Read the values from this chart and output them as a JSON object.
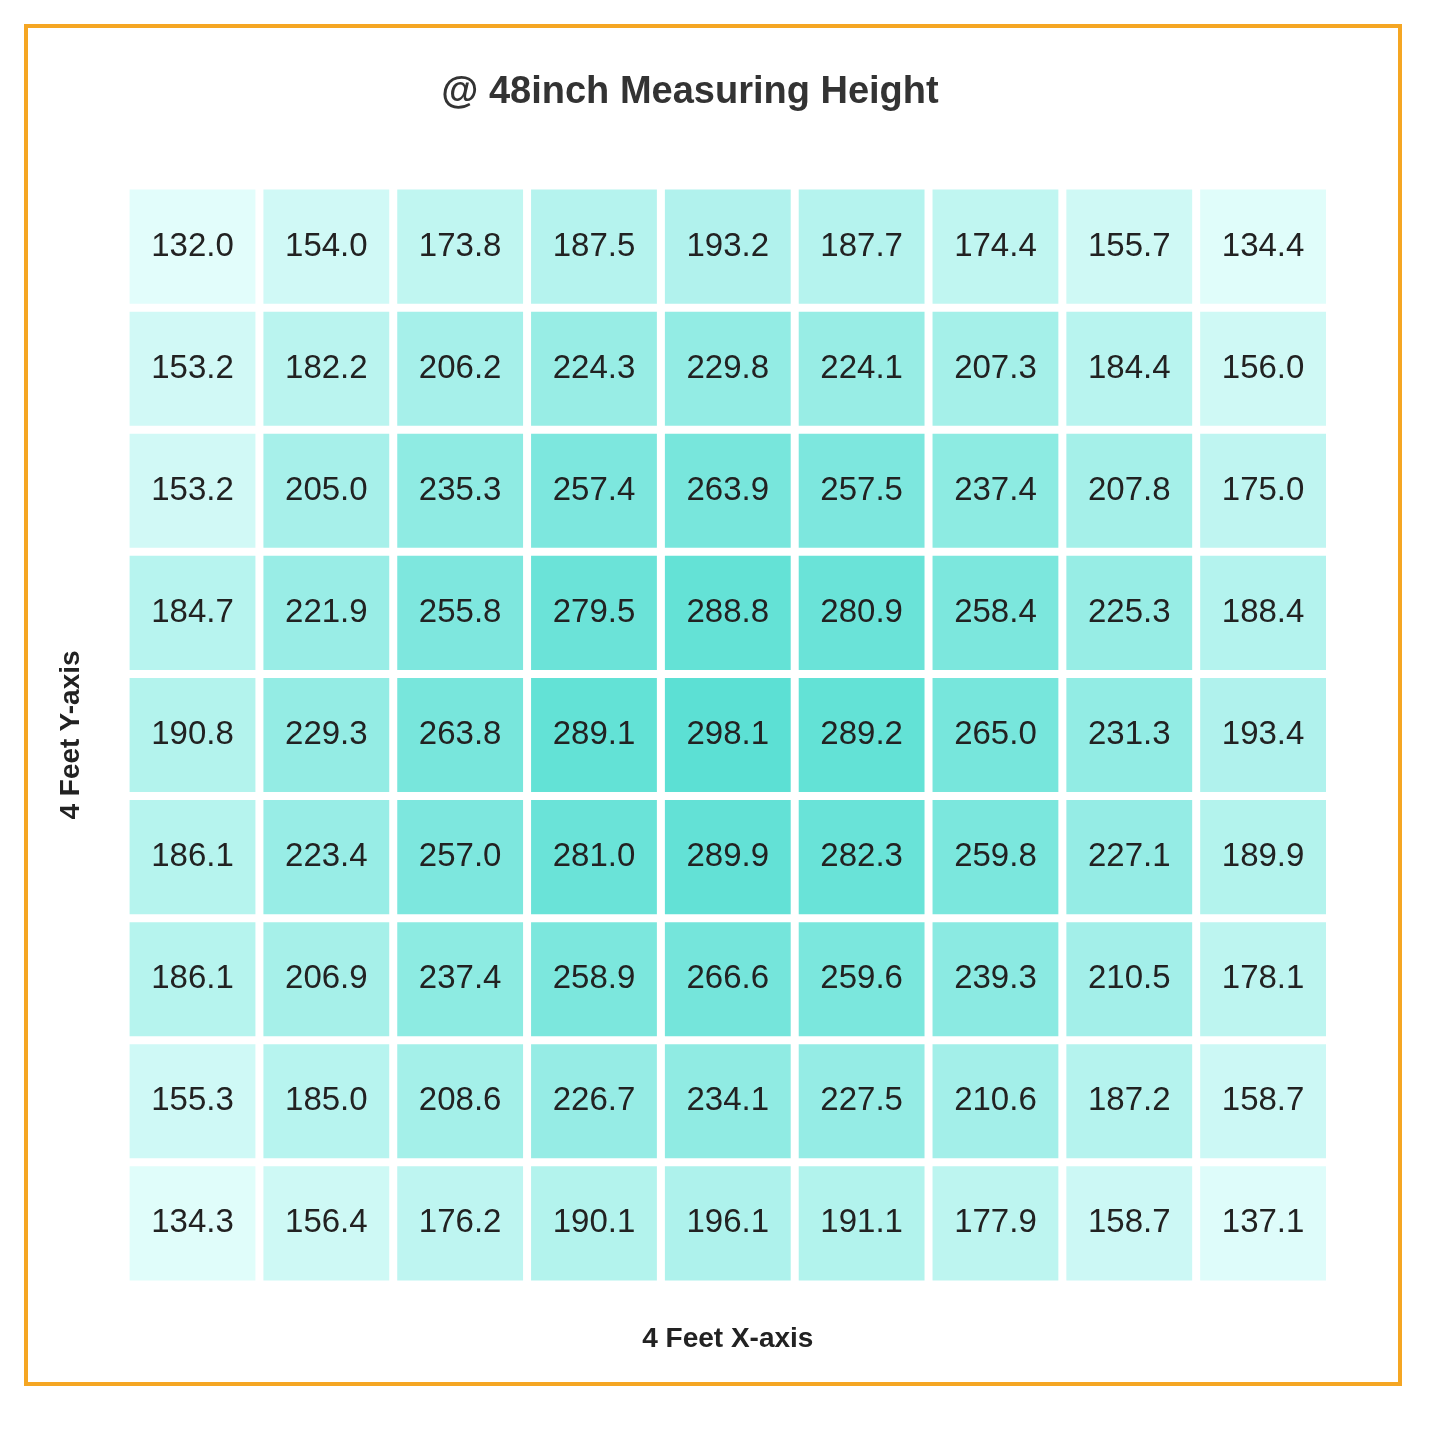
{
  "chart_data": {
    "type": "heatmap",
    "title": "@ 48inch Measuring Height",
    "xlabel": "4 Feet X-axis",
    "ylabel": "4 Feet Y-axis",
    "categories": [
      null,
      null,
      null,
      null,
      null,
      null,
      null,
      null,
      null
    ],
    "y_categories": [
      null,
      null,
      null,
      null,
      null,
      null,
      null,
      null,
      null
    ],
    "data_labels": true,
    "cell_labels": [
      [
        "132.0",
        "154.0",
        "173.8",
        "187.5",
        "193.2",
        "187.7",
        "174.4",
        "155.7",
        "134.4"
      ],
      [
        "153.2",
        "182.2",
        "206.2",
        "224.3",
        "229.8",
        "224.1",
        "207.3",
        "184.4",
        "156.0"
      ],
      [
        "153.2",
        "205.0",
        "235.3",
        "257.4",
        "263.9",
        "257.5",
        "237.4",
        "207.8",
        "175.0"
      ],
      [
        "184.7",
        "221.9",
        "255.8",
        "279.5",
        "288.8",
        "280.9",
        "258.4",
        "225.3",
        "188.4"
      ],
      [
        "190.8",
        "229.3",
        "263.8",
        "289.1",
        "298.1",
        "289.2",
        "265.0",
        "231.3",
        "193.4"
      ],
      [
        "186.1",
        "223.4",
        "257.0",
        "281.0",
        "289.9",
        "282.3",
        "259.8",
        "227.1",
        "189.9"
      ],
      [
        "186.1",
        "206.9",
        "237.4",
        "258.9",
        "266.6",
        "259.6",
        "239.3",
        "210.5",
        "178.1"
      ],
      [
        "155.3",
        "185.0",
        "208.6",
        "226.7",
        "234.1",
        "227.5",
        "210.6",
        "187.2",
        "158.7"
      ],
      [
        "134.3",
        "156.4",
        "176.2",
        "190.1",
        "196.1",
        "191.1",
        "177.9",
        "158.7",
        "137.1"
      ]
    ],
    "cells": [
      [
        132.0,
        154.0,
        173.8,
        187.5,
        193.2,
        187.7,
        174.4,
        155.7,
        134.4
      ],
      [
        153.2,
        182.2,
        206.2,
        224.3,
        229.8,
        224.1,
        207.3,
        184.4,
        156.0
      ],
      [
        153.2,
        205.0,
        235.3,
        257.4,
        263.9,
        257.5,
        237.4,
        207.8,
        175.0
      ],
      [
        184.7,
        221.9,
        255.8,
        279.5,
        288.8,
        280.9,
        258.4,
        225.3,
        188.4
      ],
      [
        190.8,
        229.3,
        263.8,
        289.1,
        298.1,
        289.2,
        265.0,
        231.3,
        193.4
      ],
      [
        186.1,
        223.4,
        257.0,
        281.0,
        289.9,
        282.3,
        259.8,
        227.1,
        189.9
      ],
      [
        186.1,
        206.9,
        237.4,
        258.9,
        266.6,
        259.6,
        239.3,
        210.5,
        178.1
      ],
      [
        155.3,
        185.0,
        208.6,
        226.7,
        234.1,
        227.5,
        210.6,
        187.2,
        158.7
      ],
      [
        134.3,
        156.4,
        176.2,
        190.1,
        196.1,
        191.1,
        177.9,
        158.7,
        137.1
      ]
    ]
  }
}
